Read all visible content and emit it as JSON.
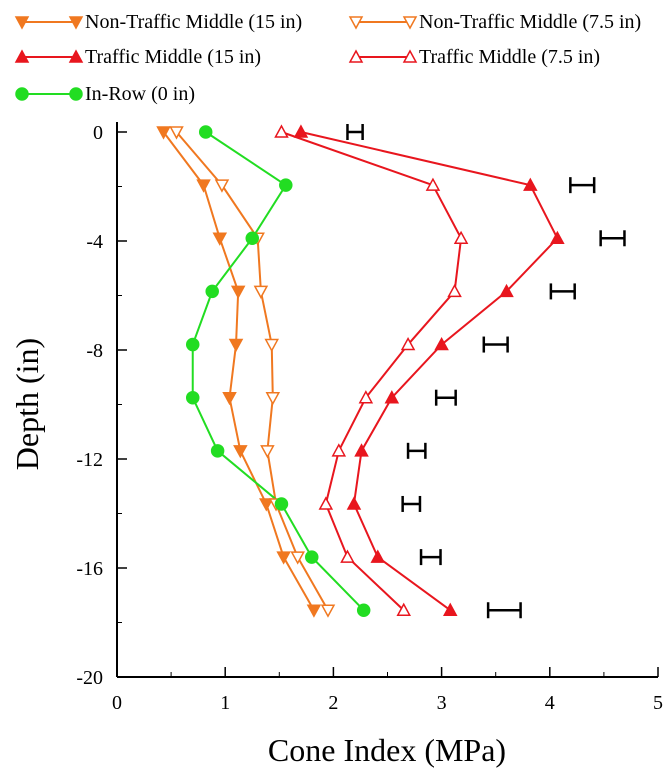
{
  "chart_data": {
    "type": "line",
    "xlabel": "Cone Index (MPa)",
    "ylabel": "Depth (in)",
    "xlim": [
      0,
      5
    ],
    "ylim": [
      -20,
      0
    ],
    "x_ticks": [
      0,
      1,
      2,
      3,
      4,
      5
    ],
    "y_ticks": [
      0,
      -4,
      -8,
      -12,
      -16,
      -20
    ],
    "grid": false,
    "legend_position": "top",
    "series": [
      {
        "name": "Non-Traffic Middle (15 in)",
        "color": "#f07820",
        "marker": "triangle-down-filled",
        "points": [
          [
            0.43,
            0
          ],
          [
            0.8,
            -1.95
          ],
          [
            0.95,
            -3.9
          ],
          [
            1.12,
            -5.85
          ],
          [
            1.1,
            -7.8
          ],
          [
            1.04,
            -9.75
          ],
          [
            1.14,
            -11.7
          ],
          [
            1.38,
            -13.65
          ],
          [
            1.54,
            -15.6
          ],
          [
            1.82,
            -17.55
          ]
        ]
      },
      {
        "name": "Non-Traffic Middle (7.5 in)",
        "color": "#f07820",
        "marker": "triangle-down-open",
        "points": [
          [
            0.55,
            0
          ],
          [
            0.97,
            -1.95
          ],
          [
            1.3,
            -3.9
          ],
          [
            1.33,
            -5.85
          ],
          [
            1.43,
            -7.8
          ],
          [
            1.44,
            -9.75
          ],
          [
            1.39,
            -11.7
          ],
          [
            1.47,
            -13.65
          ],
          [
            1.67,
            -15.6
          ],
          [
            1.95,
            -17.55
          ]
        ]
      },
      {
        "name": "Traffic Middle (15 in)",
        "color": "#e8161e",
        "marker": "triangle-up-filled",
        "points": [
          [
            1.7,
            0
          ],
          [
            3.82,
            -1.95
          ],
          [
            4.07,
            -3.9
          ],
          [
            3.6,
            -5.85
          ],
          [
            3.0,
            -7.8
          ],
          [
            2.54,
            -9.75
          ],
          [
            2.26,
            -11.7
          ],
          [
            2.19,
            -13.65
          ],
          [
            2.41,
            -15.6
          ],
          [
            3.08,
            -17.55
          ]
        ]
      },
      {
        "name": "Traffic Middle (7.5 in)",
        "color": "#e8161e",
        "marker": "triangle-up-open",
        "points": [
          [
            1.52,
            0
          ],
          [
            2.92,
            -1.95
          ],
          [
            3.18,
            -3.9
          ],
          [
            3.12,
            -5.85
          ],
          [
            2.69,
            -7.8
          ],
          [
            2.3,
            -9.75
          ],
          [
            2.05,
            -11.7
          ],
          [
            1.93,
            -13.65
          ],
          [
            2.13,
            -15.6
          ],
          [
            2.65,
            -17.55
          ]
        ]
      },
      {
        "name": "In-Row (0 in)",
        "color": "#22dd22",
        "marker": "circle-filled",
        "points": [
          [
            0.82,
            0
          ],
          [
            1.56,
            -1.95
          ],
          [
            1.25,
            -3.9
          ],
          [
            0.88,
            -5.85
          ],
          [
            0.7,
            -7.8
          ],
          [
            0.7,
            -9.75
          ],
          [
            0.93,
            -11.7
          ],
          [
            1.52,
            -13.65
          ],
          [
            1.8,
            -15.6
          ],
          [
            2.28,
            -17.55
          ]
        ]
      }
    ],
    "error_bars": [
      {
        "center_x": 2.2,
        "y": 0,
        "half_width": 0.07
      },
      {
        "center_x": 4.3,
        "y": -1.95,
        "half_width": 0.11
      },
      {
        "center_x": 4.58,
        "y": -3.9,
        "half_width": 0.11
      },
      {
        "center_x": 4.12,
        "y": -5.85,
        "half_width": 0.11
      },
      {
        "center_x": 3.5,
        "y": -7.8,
        "half_width": 0.11
      },
      {
        "center_x": 3.04,
        "y": -9.75,
        "half_width": 0.09
      },
      {
        "center_x": 2.77,
        "y": -11.7,
        "half_width": 0.08
      },
      {
        "center_x": 2.72,
        "y": -13.65,
        "half_width": 0.08
      },
      {
        "center_x": 2.9,
        "y": -15.6,
        "half_width": 0.09
      },
      {
        "center_x": 3.58,
        "y": -17.55,
        "half_width": 0.15
      }
    ]
  }
}
